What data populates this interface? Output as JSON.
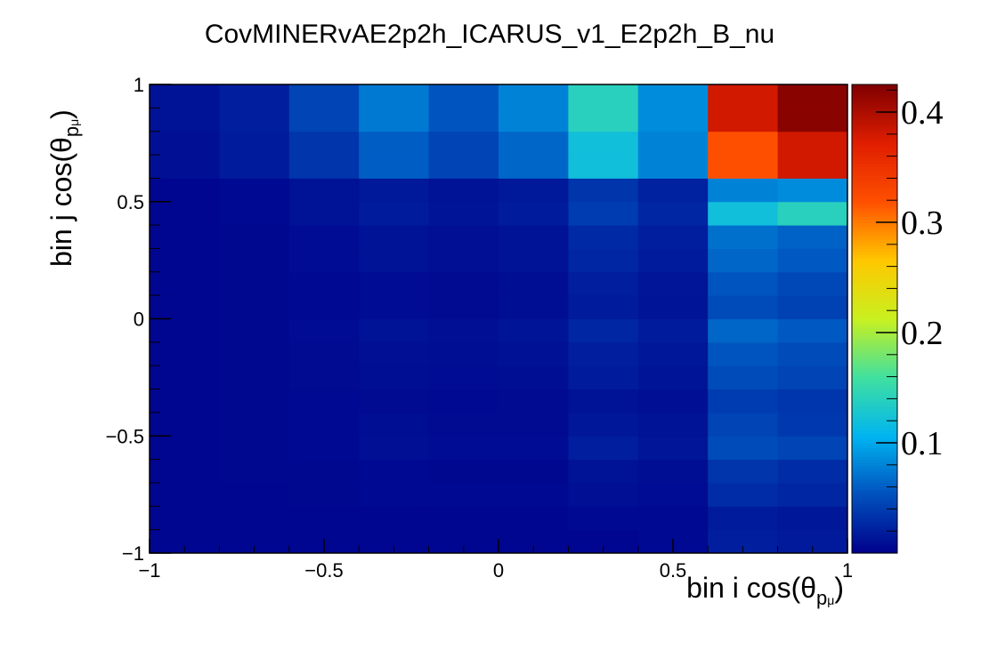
{
  "chart_data": {
    "type": "heatmap",
    "title": "CovMINERvAE2p2h_ICARUS_v1_E2p2h_B_nu",
    "xlabel": {
      "prefix": "bin i cos(",
      "theta": "θ",
      "sub": "p",
      "subsub": "μ",
      "suffix": ")"
    },
    "ylabel": {
      "prefix": "bin j cos(",
      "theta": "θ",
      "sub": "p",
      "subsub": "μ",
      "suffix": ")"
    },
    "xlim": [
      -1,
      1
    ],
    "ylim": [
      -1,
      1
    ],
    "x_ticks": [
      {
        "v": -1,
        "label": "−1"
      },
      {
        "v": -0.5,
        "label": "−0.5"
      },
      {
        "v": 0,
        "label": "0"
      },
      {
        "v": 0.5,
        "label": "0.5"
      },
      {
        "v": 1,
        "label": "1"
      }
    ],
    "y_ticks": [
      {
        "v": -1,
        "label": "−1"
      },
      {
        "v": -0.5,
        "label": "−0.5"
      },
      {
        "v": 0,
        "label": "0"
      },
      {
        "v": 0.5,
        "label": "0.5"
      },
      {
        "v": 1,
        "label": "1"
      }
    ],
    "x_edges": [
      -1,
      -0.8,
      -0.6,
      -0.4,
      -0.2,
      0,
      0.2,
      0.4,
      0.6,
      0.8,
      1
    ],
    "y_edges": [
      -1,
      -0.9,
      -0.8,
      -0.7,
      -0.6,
      -0.5,
      -0.4,
      -0.3,
      -0.2,
      -0.1,
      0,
      0.1,
      0.2,
      0.3,
      0.4,
      0.5,
      0.6,
      0.7,
      0.8,
      0.9,
      1
    ],
    "values": [
      [
        0.004,
        0.004,
        0.004,
        0.004,
        0.004,
        0.004,
        0.004,
        0.006,
        0.02,
        0.017
      ],
      [
        0.004,
        0.004,
        0.004,
        0.004,
        0.004,
        0.004,
        0.006,
        0.006,
        0.018,
        0.015
      ],
      [
        0.004,
        0.004,
        0.005,
        0.006,
        0.006,
        0.006,
        0.01,
        0.008,
        0.03,
        0.025
      ],
      [
        0.004,
        0.005,
        0.005,
        0.006,
        0.005,
        0.005,
        0.012,
        0.009,
        0.035,
        0.03
      ],
      [
        0.004,
        0.005,
        0.006,
        0.01,
        0.008,
        0.008,
        0.02,
        0.014,
        0.05,
        0.045
      ],
      [
        0.004,
        0.005,
        0.006,
        0.009,
        0.007,
        0.007,
        0.015,
        0.012,
        0.045,
        0.038
      ],
      [
        0.004,
        0.005,
        0.006,
        0.007,
        0.006,
        0.007,
        0.012,
        0.01,
        0.04,
        0.036
      ],
      [
        0.004,
        0.005,
        0.007,
        0.009,
        0.008,
        0.009,
        0.018,
        0.013,
        0.05,
        0.045
      ],
      [
        0.004,
        0.005,
        0.007,
        0.01,
        0.009,
        0.011,
        0.02,
        0.015,
        0.055,
        0.05
      ],
      [
        0.004,
        0.005,
        0.008,
        0.012,
        0.01,
        0.013,
        0.025,
        0.018,
        0.065,
        0.058
      ],
      [
        0.004,
        0.005,
        0.006,
        0.008,
        0.007,
        0.009,
        0.018,
        0.013,
        0.05,
        0.043
      ],
      [
        0.004,
        0.005,
        0.006,
        0.008,
        0.007,
        0.009,
        0.02,
        0.014,
        0.055,
        0.048
      ],
      [
        0.004,
        0.005,
        0.008,
        0.012,
        0.01,
        0.012,
        0.025,
        0.018,
        0.065,
        0.058
      ],
      [
        0.004,
        0.005,
        0.008,
        0.012,
        0.01,
        0.012,
        0.028,
        0.02,
        0.07,
        0.062
      ],
      [
        0.004,
        0.006,
        0.012,
        0.018,
        0.013,
        0.018,
        0.04,
        0.025,
        0.12,
        0.14
      ],
      [
        0.004,
        0.006,
        0.012,
        0.016,
        0.012,
        0.016,
        0.035,
        0.022,
        0.08,
        0.085
      ],
      [
        0.01,
        0.018,
        0.035,
        0.06,
        0.045,
        0.065,
        0.12,
        0.08,
        0.32,
        0.38
      ],
      [
        0.01,
        0.018,
        0.035,
        0.06,
        0.045,
        0.065,
        0.12,
        0.08,
        0.32,
        0.38
      ],
      [
        0.012,
        0.02,
        0.045,
        0.075,
        0.055,
        0.08,
        0.14,
        0.085,
        0.38,
        0.42
      ],
      [
        0.012,
        0.02,
        0.045,
        0.075,
        0.055,
        0.08,
        0.14,
        0.085,
        0.38,
        0.42
      ]
    ],
    "zlim": [
      0.0,
      0.425
    ],
    "z_ticks": [
      {
        "v": 0.1,
        "label": "0.1"
      },
      {
        "v": 0.2,
        "label": "0.2"
      },
      {
        "v": 0.3,
        "label": "0.3"
      },
      {
        "v": 0.4,
        "label": "0.4"
      }
    ],
    "colormap": [
      "#00008b",
      "#0050bd",
      "#00b4f0",
      "#40e0a0",
      "#c8f020",
      "#ffc800",
      "#ff5000",
      "#e01e00",
      "#800000"
    ],
    "grid": false
  }
}
